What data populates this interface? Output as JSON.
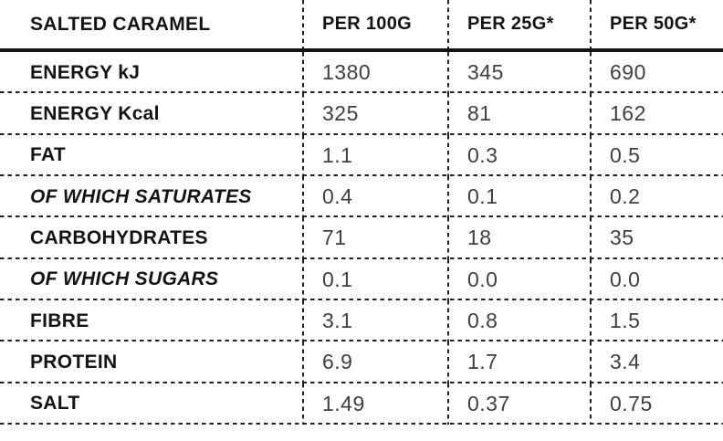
{
  "table": {
    "title": "SALTED CARAMEL",
    "column_headers": [
      "PER 100G",
      "PER 25G*",
      "PER 50G*"
    ],
    "rows": [
      {
        "label": "ENERGY kJ",
        "style": "normal",
        "values": [
          "1380",
          "345",
          "690"
        ]
      },
      {
        "label": "ENERGY Kcal",
        "style": "normal",
        "values": [
          "325",
          "81",
          "162"
        ]
      },
      {
        "label": "FAT",
        "style": "normal",
        "values": [
          "1.1",
          "0.3",
          "0.5"
        ]
      },
      {
        "label": "OF WHICH SATURATES",
        "style": "italic",
        "values": [
          "0.4",
          "0.1",
          "0.2"
        ]
      },
      {
        "label": "CARBOHYDRATES",
        "style": "normal",
        "values": [
          "71",
          "18",
          "35"
        ]
      },
      {
        "label": "OF WHICH SUGARS",
        "style": "italic",
        "values": [
          "0.1",
          "0.0",
          "0.0"
        ]
      },
      {
        "label": "FIBRE",
        "style": "normal",
        "values": [
          "3.1",
          "0.8",
          "1.5"
        ]
      },
      {
        "label": "PROTEIN",
        "style": "normal",
        "values": [
          "6.9",
          "1.7",
          "3.4"
        ]
      },
      {
        "label": "SALT",
        "style": "normal",
        "values": [
          "1.49",
          "0.37",
          "0.75"
        ]
      }
    ],
    "colors": {
      "label_text": "#141414",
      "value_text": "#3f3f3f",
      "border": "#222222",
      "header_rule": "#131313",
      "background": "#ffffff"
    }
  }
}
